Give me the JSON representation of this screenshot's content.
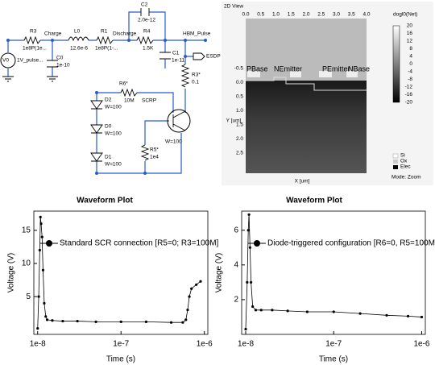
{
  "circuit": {
    "source": {
      "name": "V0",
      "value": "1V_pulse..."
    },
    "nodes": [
      "Charge",
      "Discharge",
      "HBM_Pulse",
      "ESDP"
    ],
    "r3": {
      "name": "R3",
      "value": "1e8P(1e..."
    },
    "l0": {
      "name": "L0",
      "value": "12.6e-6"
    },
    "r1": {
      "name": "R1",
      "value": "1e8P(1-..."
    },
    "c2": {
      "name": "C2",
      "value": "2.0e-12"
    },
    "r4": {
      "name": "R4",
      "value": "1.5K"
    },
    "c0": {
      "name": "C0",
      "value": "1e-10"
    },
    "c1": {
      "name": "C1",
      "value": "1e-11"
    },
    "r3s": {
      "name": "R3*",
      "value": "0.1"
    },
    "r6s": {
      "name": "R6*",
      "value": "10M"
    },
    "scr": {
      "name": "SCRP",
      "value": "W=100"
    },
    "d2": {
      "name": "D2",
      "value": "W=100"
    },
    "d0": {
      "name": "D0",
      "value": "W=100"
    },
    "d1": {
      "name": "D1",
      "value": "W=100"
    },
    "r5s": {
      "name": "R5*",
      "value": "1e4"
    }
  },
  "device": {
    "title": "2D View",
    "regions": [
      "PBase",
      "NEmitter",
      "PEmitter",
      "NBase"
    ],
    "xlabel": "X [um]",
    "ylabel": "Y [um]",
    "xticks": [
      "0.0",
      "0.5",
      "1.0",
      "1.5",
      "2.0",
      "2.5",
      "3.0",
      "3.5",
      "4.0"
    ],
    "yticks": [
      "-0.5",
      "0.0",
      "0.5",
      "1.0",
      "1.5",
      "2.0",
      "2.5"
    ],
    "colorbar_title": "dogl0(Net)",
    "colorbar_ticks": [
      "20",
      "16",
      "12",
      "8",
      "4",
      "0",
      "-4",
      "-8",
      "-12",
      "-16",
      "-20"
    ],
    "materials": [
      "Si",
      "Ox",
      "Elec"
    ],
    "mode": "Mode: Zoom"
  },
  "chart_data": [
    {
      "type": "line",
      "title": "Waveform Plot",
      "xlabel": "Time (s)",
      "ylabel": "Voltage (V)",
      "xscale": "log",
      "xlim": [
        9e-09,
        1.1e-06
      ],
      "ylim": [
        -0.7,
        17.9
      ],
      "xticks": [
        {
          "value": 1e-08,
          "label": "1e-8"
        },
        {
          "value": 1e-07,
          "label": "1e-7"
        },
        {
          "value": 1e-06,
          "label": "1e-6"
        }
      ],
      "yticks": [
        5,
        10,
        15
      ],
      "series": [
        {
          "name": "Standard SCR connection [R5=0; R3=100M]",
          "color": "#000000",
          "x": [
            1e-08,
            1.03e-08,
            1.06e-08,
            1.08e-08,
            1.1e-08,
            1.13e-08,
            1.16e-08,
            1.2e-08,
            1.25e-08,
            1.3e-08,
            1.5e-08,
            2e-08,
            3e-08,
            5e-08,
            1e-07,
            2e-07,
            4e-07,
            5.5e-07,
            6e-07,
            6.3e-07,
            6.6e-07,
            7e-07,
            8e-07,
            9e-07
          ],
          "values": [
            0.2,
            5,
            12,
            17,
            16,
            14,
            9,
            4,
            2,
            1.5,
            1.4,
            1.3,
            1.3,
            1.2,
            1.2,
            1.2,
            1.1,
            1.1,
            1.5,
            3,
            5,
            6.2,
            6.8,
            7.3
          ]
        }
      ]
    },
    {
      "type": "line",
      "title": "Waveform Plot",
      "xlabel": "Time (s)",
      "ylabel": "Voltage (V)",
      "xscale": "log",
      "xlim": [
        9e-09,
        1.1e-06
      ],
      "ylim": [
        0,
        7.1
      ],
      "xticks": [
        {
          "value": 1e-08,
          "label": "1e-8"
        },
        {
          "value": 1e-07,
          "label": "1e-7"
        },
        {
          "value": 1e-06,
          "label": "1e-6"
        }
      ],
      "yticks": [
        2,
        4,
        6
      ],
      "series": [
        {
          "name": "Diode-triggered configuration [R6=0, R5=100M]",
          "color": "#000000",
          "x": [
            1e-08,
            1.04e-08,
            1.07e-08,
            1.09e-08,
            1.12e-08,
            1.15e-08,
            1.2e-08,
            1.3e-08,
            1.5e-08,
            2e-08,
            3e-08,
            5e-08,
            1e-07,
            2e-07,
            4e-07,
            7e-07,
            1e-06
          ],
          "values": [
            0.3,
            3,
            6,
            6.9,
            5,
            3,
            1.6,
            1.4,
            1.4,
            1.4,
            1.35,
            1.3,
            1.3,
            1.2,
            1.1,
            1.05,
            1.0
          ]
        }
      ]
    }
  ]
}
